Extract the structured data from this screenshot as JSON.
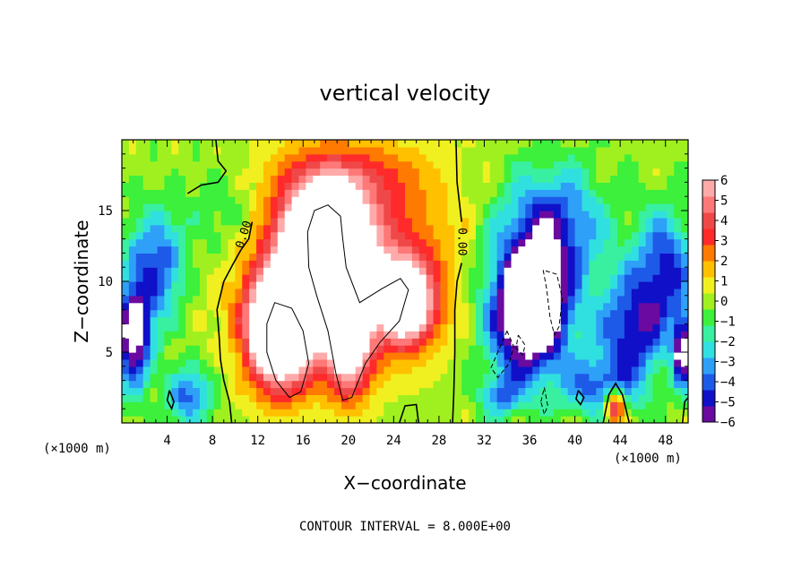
{
  "chart_data": {
    "type": "heatmap",
    "title": "vertical velocity",
    "xlabel": "X−coordinate",
    "ylabel": "Z−coordinate",
    "x_unit_left": "(×1000 m)",
    "x_unit_right": "(×1000 m)",
    "footer": "CONTOUR INTERVAL = 8.000E+00",
    "xlim": [
      0,
      50
    ],
    "ylim": [
      0,
      20
    ],
    "x_ticks": [
      4,
      8,
      12,
      16,
      20,
      24,
      28,
      32,
      36,
      40,
      44,
      48
    ],
    "y_ticks": [
      5,
      10,
      15
    ],
    "colorbar": {
      "range": [
        -6,
        6
      ],
      "ticks": [
        6,
        5,
        4,
        3,
        2,
        1,
        0,
        -1,
        -2,
        -3,
        -4,
        -5,
        -6
      ],
      "tick_labels": [
        "6",
        "5",
        "4",
        "3",
        "2",
        "1",
        "0",
        "−1",
        "−2",
        "−3",
        "−4",
        "−5",
        "−6"
      ],
      "colors": [
        "#6a0aa0",
        "#1010c8",
        "#1e5ae8",
        "#2ea0f8",
        "#30e0e0",
        "#38f0a0",
        "#3cf03c",
        "#a0f020",
        "#f0f020",
        "#ffc000",
        "#ff7a00",
        "#ff2a2a",
        "#f04848",
        "#ff7878",
        "#ffaaaa"
      ]
    },
    "contour_labels": [
      "0.00",
      "0.00"
    ],
    "field_blobs": [
      {
        "x": 20,
        "z": 11.5,
        "sx": 9.0,
        "sz": 6.5,
        "amp": 4.0
      },
      {
        "x": 18,
        "z": 12.5,
        "sx": 3.5,
        "sz": 4.0,
        "amp": 12.0
      },
      {
        "x": 14,
        "z": 6.5,
        "sx": 3.0,
        "sz": 4.0,
        "amp": 11.0
      },
      {
        "x": 25,
        "z": 8.5,
        "sx": 2.5,
        "sz": 3.0,
        "amp": 8.0
      },
      {
        "x": 20,
        "z": 5.5,
        "sx": 2.0,
        "sz": 3.5,
        "amp": 7.5
      },
      {
        "x": 20,
        "z": 17.5,
        "sx": 7.0,
        "sz": 2.5,
        "amp": 2.0
      },
      {
        "x": 36,
        "z": 8.0,
        "sx": 3.5,
        "sz": 4.5,
        "amp": -10.0
      },
      {
        "x": 38,
        "z": 14.0,
        "sx": 4.5,
        "sz": 4.0,
        "amp": -4.5
      },
      {
        "x": 45,
        "z": 6.5,
        "sx": 3.0,
        "sz": 4.0,
        "amp": -5.0
      },
      {
        "x": 48,
        "z": 11.0,
        "sx": 2.5,
        "sz": 4.0,
        "amp": -4.5
      },
      {
        "x": 42,
        "z": 2.5,
        "sx": 3.0,
        "sz": 2.0,
        "amp": -3.5
      },
      {
        "x": 1,
        "z": 6.0,
        "sx": 1.5,
        "sz": 3.5,
        "amp": -7.0
      },
      {
        "x": 3,
        "z": 11.0,
        "sx": 2.5,
        "sz": 4.0,
        "amp": -4.5
      },
      {
        "x": 6,
        "z": 2.0,
        "sx": 2.0,
        "sz": 2.0,
        "amp": -4.0
      },
      {
        "x": 9,
        "z": 15.0,
        "sx": 3.5,
        "sz": 3.5,
        "amp": -1.5
      },
      {
        "x": 43.5,
        "z": 1.2,
        "sx": 0.9,
        "sz": 1.2,
        "amp": 6.5
      },
      {
        "x": 49.5,
        "z": 5.0,
        "sx": 0.8,
        "sz": 2.5,
        "amp": -6.5
      },
      {
        "x": 33.5,
        "z": 2.0,
        "sx": 2.0,
        "sz": 1.5,
        "amp": -3.0
      }
    ],
    "field_ripples": [
      {
        "kx": 1.3,
        "kz": 0.9,
        "amp": 0.7,
        "xmin": 30,
        "xmax": 50
      },
      {
        "kx": 1.7,
        "kz": 1.3,
        "amp": 0.5,
        "xmin": 0,
        "xmax": 12
      }
    ],
    "zero_contours": [
      [
        [
          5.8,
          16.2
        ],
        [
          7,
          16.8
        ],
        [
          8.5,
          17.0
        ],
        [
          9.2,
          17.8
        ],
        [
          8.5,
          18.5
        ],
        [
          8.3,
          20.0
        ]
      ],
      [
        [
          10.5,
          12.2
        ],
        [
          9.8,
          11.2
        ],
        [
          9.0,
          10.0
        ],
        [
          8.4,
          8.0
        ],
        [
          8.6,
          6.0
        ],
        [
          8.7,
          4.5
        ],
        [
          9.0,
          3.0
        ],
        [
          9.5,
          1.5
        ],
        [
          9.7,
          0.0
        ]
      ],
      [
        [
          10.5,
          12.2
        ],
        [
          11.2,
          13.0
        ],
        [
          11.5,
          14.2
        ]
      ],
      [
        [
          29.5,
          20.0
        ],
        [
          29.6,
          17.0
        ],
        [
          30.0,
          14.2
        ]
      ],
      [
        [
          30.0,
          11.3
        ],
        [
          29.6,
          10.0
        ],
        [
          29.4,
          8.0
        ],
        [
          29.4,
          5.0
        ],
        [
          29.3,
          2.0
        ],
        [
          29.2,
          0.0
        ]
      ],
      [
        [
          24.5,
          0.0
        ],
        [
          25.0,
          1.2
        ],
        [
          26.0,
          1.3
        ],
        [
          26.2,
          0.0
        ]
      ],
      [
        [
          42.5,
          0.0
        ],
        [
          43.0,
          2.0
        ],
        [
          43.6,
          2.8
        ],
        [
          44.2,
          2.0
        ],
        [
          44.8,
          0.0
        ]
      ],
      [
        [
          4.2,
          2.3
        ],
        [
          4.6,
          1.5
        ],
        [
          4.4,
          1.0
        ],
        [
          4.0,
          1.6
        ],
        [
          4.2,
          2.3
        ]
      ],
      [
        [
          40.3,
          2.3
        ],
        [
          40.8,
          1.8
        ],
        [
          40.5,
          1.3
        ],
        [
          40.1,
          1.7
        ],
        [
          40.3,
          2.3
        ]
      ],
      [
        [
          49.5,
          0.0
        ],
        [
          49.7,
          1.5
        ],
        [
          50.0,
          1.8
        ]
      ]
    ],
    "pos_contours": [
      [
        [
          16.5,
          11.0
        ],
        [
          16.4,
          13.5
        ],
        [
          17.0,
          15.0
        ],
        [
          18.2,
          15.4
        ],
        [
          19.3,
          14.6
        ],
        [
          19.5,
          13.0
        ],
        [
          19.8,
          11.0
        ],
        [
          21.0,
          8.5
        ],
        [
          23.0,
          9.5
        ],
        [
          24.6,
          10.2
        ],
        [
          25.3,
          9.4
        ],
        [
          24.5,
          7.2
        ],
        [
          22.8,
          5.7
        ],
        [
          21.5,
          4.2
        ],
        [
          20.3,
          1.8
        ],
        [
          19.5,
          1.6
        ],
        [
          18.9,
          3.5
        ],
        [
          18.2,
          6.5
        ],
        [
          17.2,
          9.0
        ],
        [
          16.5,
          11.0
        ]
      ],
      [
        [
          12.8,
          7.0
        ],
        [
          13.5,
          8.5
        ],
        [
          15.0,
          8.1
        ],
        [
          16.0,
          6.5
        ],
        [
          16.5,
          4.2
        ],
        [
          15.8,
          2.2
        ],
        [
          14.8,
          1.8
        ],
        [
          13.6,
          3.0
        ],
        [
          12.8,
          5.0
        ],
        [
          12.8,
          7.0
        ]
      ]
    ],
    "neg_contours": [
      [
        [
          37.2,
          10.8
        ],
        [
          37.5,
          9.5
        ],
        [
          37.8,
          7.5
        ],
        [
          38.2,
          6.2
        ],
        [
          38.6,
          6.8
        ],
        [
          38.9,
          8.8
        ],
        [
          38.4,
          10.5
        ],
        [
          37.2,
          10.8
        ]
      ],
      [
        [
          34.0,
          6.5
        ],
        [
          33.3,
          5.2
        ],
        [
          32.6,
          3.9
        ],
        [
          33.2,
          3.2
        ],
        [
          34.2,
          4.2
        ],
        [
          34.6,
          5.4
        ],
        [
          34.0,
          6.5
        ]
      ],
      [
        [
          35.0,
          6.2
        ],
        [
          35.6,
          5.5
        ],
        [
          35.4,
          4.8
        ],
        [
          34.8,
          5.3
        ],
        [
          35.0,
          6.2
        ]
      ],
      [
        [
          37.0,
          1.5
        ],
        [
          37.3,
          2.5
        ],
        [
          37.6,
          1.2
        ],
        [
          37.3,
          0.6
        ],
        [
          37.0,
          1.5
        ]
      ]
    ]
  }
}
